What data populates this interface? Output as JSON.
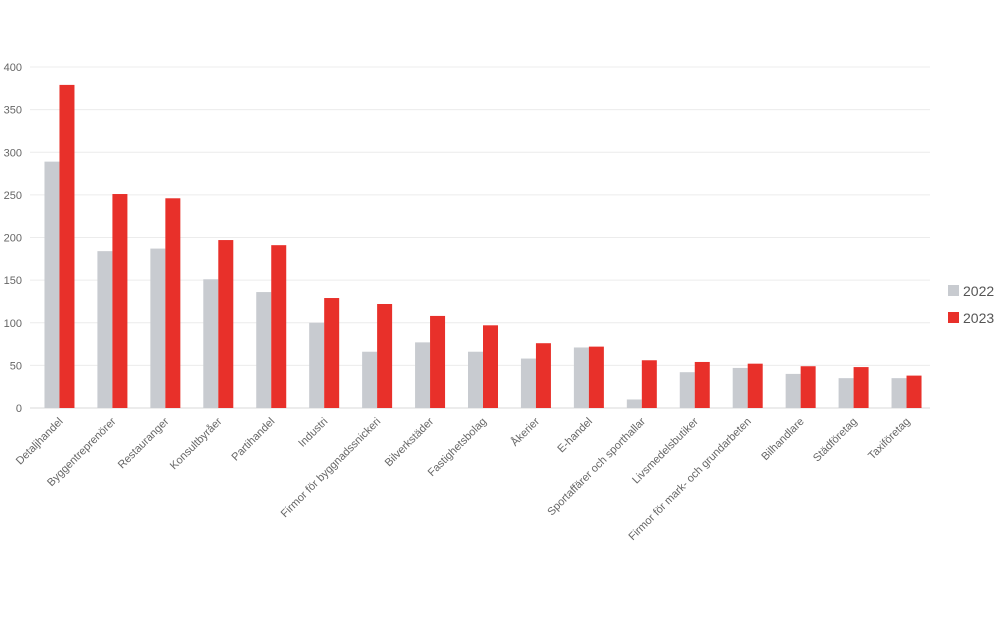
{
  "chart_data": {
    "type": "bar",
    "title": "",
    "xlabel": "",
    "ylabel": "",
    "ylim": [
      0,
      400
    ],
    "yticks": [
      0,
      50,
      100,
      150,
      200,
      250,
      300,
      350,
      400
    ],
    "grid": true,
    "legend_position": "right",
    "categories": [
      "Detaljhandel",
      "Byggentreprenörer",
      "Restauranger",
      "Konsultbyråer",
      "Partihandel",
      "Industri",
      "Firmor för byggnadssnickeri",
      "Bilverkstäder",
      "Fastighetsbolag",
      "Åkerier",
      "E-handel",
      "Sportaffärer och sporthallar",
      "Livsmedelsbutiker",
      "Firmor för mark- och grundarbeten",
      "Bilhandlare",
      "Städföretag",
      "Taxiföretag"
    ],
    "series": [
      {
        "name": "2022",
        "color": "#c8cbd0",
        "values": [
          289,
          184,
          187,
          151,
          136,
          100,
          66,
          77,
          66,
          58,
          71,
          10,
          42,
          47,
          40,
          35,
          35
        ]
      },
      {
        "name": "2023",
        "color": "#e8302a",
        "values": [
          379,
          251,
          246,
          197,
          191,
          129,
          122,
          108,
          97,
          76,
          72,
          56,
          54,
          52,
          49,
          48,
          38
        ]
      }
    ]
  }
}
